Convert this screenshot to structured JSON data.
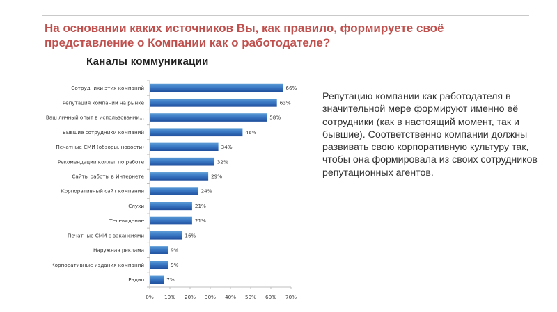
{
  "slide": {
    "title": "На основании каких источников Вы, как правило, формируете своё представление о Компании как о работодателе?",
    "side_text": "Репутацию компании как работодателя в значительной мере формируют именно её сотрудники (как в настоящий момент, так и бывшие). Соответственно компании должны развивать свою корпоративную культуру так, чтобы она формировала из своих сотрудников репутационных агентов."
  },
  "colors": {
    "title": "#c0504d",
    "bar_light": "#5b9bd5",
    "bar_dark": "#1f4e9c",
    "axis": "#bfbfbf"
  },
  "chart_data": {
    "type": "bar",
    "orientation": "horizontal",
    "title": "Каналы коммуникации",
    "categories": [
      "Сотрудники этих компаний",
      "Репутация компании на рынке",
      "Ваш личный опыт в использовании...",
      "Бывшие сотрудники компаний",
      "Печатные СМИ (обзоры, новости)",
      "Рекомендации коллег по работе",
      "Сайты работы в Интернете",
      "Корпоративный сайт компании",
      "Слухи",
      "Телевидение",
      "Печатные СМИ с вакансиями",
      "Наружная реклама",
      "Корпоративные издания компаний",
      "Радио"
    ],
    "values": [
      66,
      63,
      58,
      46,
      34,
      32,
      29,
      24,
      21,
      21,
      16,
      9,
      9,
      7
    ],
    "value_labels": [
      "66%",
      "63%",
      "58%",
      "46%",
      "34%",
      "32%",
      "29%",
      "24%",
      "21%",
      "21%",
      "16%",
      "9%",
      "9%",
      "7%"
    ],
    "xlim": [
      0,
      70
    ],
    "xticks": [
      0,
      10,
      20,
      30,
      40,
      50,
      60,
      70
    ],
    "xtick_labels": [
      "0%",
      "10%",
      "20%",
      "30%",
      "40%",
      "50%",
      "60%",
      "70%"
    ],
    "grid": false,
    "legend": "none"
  }
}
